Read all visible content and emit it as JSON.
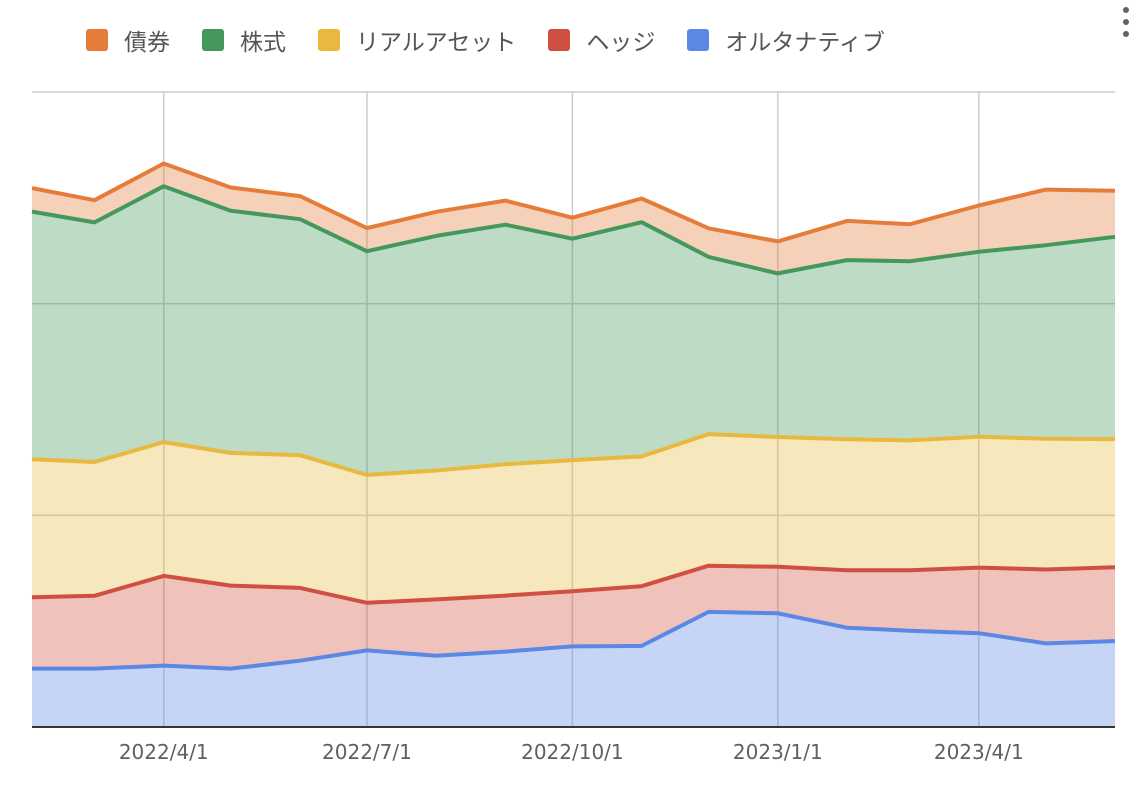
{
  "colors": {
    "bonds": "#e67c3a",
    "stocks": "#44975d",
    "real_assets": "#e8b93f",
    "hedge": "#d14f40",
    "alternatives": "#5b87e5",
    "grid": "#cccccc",
    "axis": "#333333"
  },
  "menu": {
    "icon": "more-vert-icon"
  },
  "chart_data": {
    "type": "area",
    "stacked": true,
    "legend_position": "top",
    "grid": true,
    "x": [
      "2022/2/1",
      "2022/3/1",
      "2022/4/1",
      "2022/5/1",
      "2022/6/1",
      "2022/7/1",
      "2022/8/1",
      "2022/9/1",
      "2022/10/1",
      "2022/11/1",
      "2022/12/1",
      "2023/1/1",
      "2023/2/1",
      "2023/3/1",
      "2023/4/1",
      "2023/5/1",
      "2023/6/1"
    ],
    "x_ticks": [
      "2022/4/1",
      "2022/7/1",
      "2022/10/1",
      "2023/1/1",
      "2023/4/1"
    ],
    "ylim": [
      0,
      300
    ],
    "y_gridlines": [
      100,
      200,
      300
    ],
    "xlabel": "",
    "ylabel": "",
    "series": [
      {
        "name": "オルタナティブ",
        "color_key": "alternatives",
        "values": [
          27.6,
          27.6,
          29.0,
          27.6,
          31.3,
          36.2,
          33.7,
          35.6,
          38.1,
          38.3,
          54.4,
          53.7,
          46.9,
          45.5,
          44.3,
          39.5,
          40.6
        ]
      },
      {
        "name": "ヘッジ",
        "color_key": "hedge",
        "values": [
          33.7,
          34.4,
          42.4,
          39.2,
          34.4,
          22.5,
          26.6,
          26.5,
          26.0,
          28.2,
          21.8,
          22.0,
          27.2,
          28.6,
          31.0,
          34.9,
          34.9
        ]
      },
      {
        "name": "リアルアセット",
        "color_key": "real_assets",
        "values": [
          65.2,
          63.2,
          63.2,
          62.7,
          62.7,
          60.4,
          60.9,
          62.0,
          62.0,
          61.3,
          62.2,
          61.3,
          61.8,
          61.3,
          61.8,
          61.8,
          60.5
        ]
      },
      {
        "name": "株式",
        "color_key": "stocks",
        "values": [
          117.0,
          113.2,
          120.9,
          114.4,
          111.5,
          105.7,
          110.8,
          113.2,
          104.6,
          110.7,
          83.7,
          77.3,
          84.7,
          84.6,
          87.4,
          91.4,
          95.6
        ]
      },
      {
        "name": "債券",
        "color_key": "bonds",
        "values": [
          11.1,
          10.5,
          10.7,
          11.0,
          10.9,
          10.9,
          11.4,
          11.4,
          9.9,
          11.2,
          13.5,
          15.1,
          18.5,
          17.5,
          21.9,
          26.3,
          21.7
        ]
      }
    ],
    "legend_order": [
      "債券",
      "株式",
      "リアルアセット",
      "ヘッジ",
      "オルタナティブ"
    ]
  }
}
